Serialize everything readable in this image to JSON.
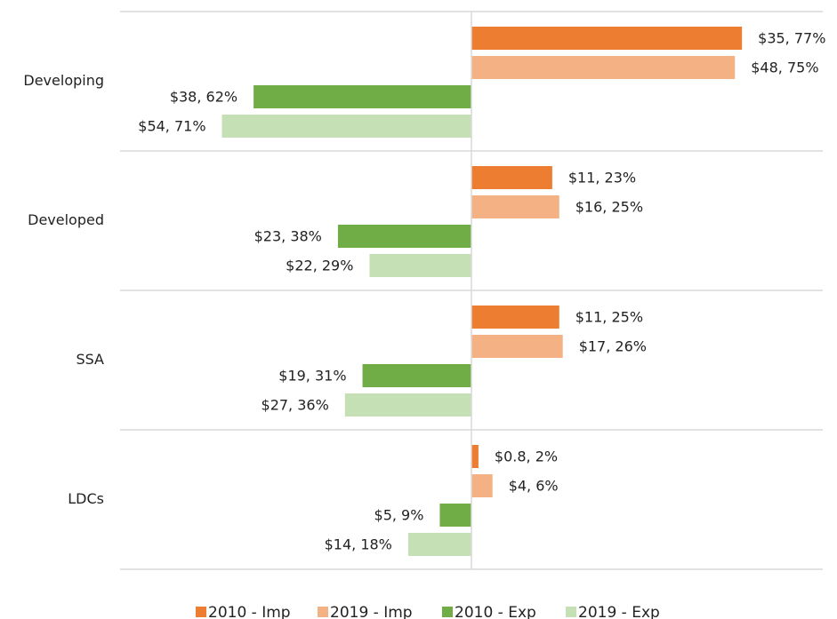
{
  "chart_data": {
    "type": "diverging-bar",
    "categories": [
      "Developing",
      "Developed",
      "SSA",
      "LDCs"
    ],
    "series": [
      {
        "name": "2010 - Imp",
        "color": "#ed7d31",
        "direction": "right",
        "values": [
          77,
          23,
          25,
          2
        ],
        "value_labels": [
          "$35, 77%",
          "$11, 23%",
          "$11, 25%",
          "$0.8, 2%"
        ]
      },
      {
        "name": "2019 - Imp",
        "color": "#f4b183",
        "direction": "right",
        "values": [
          75,
          25,
          26,
          6
        ],
        "value_labels": [
          "$48, 75%",
          "$16, 25%",
          "$17, 26%",
          "$4, 6%"
        ]
      },
      {
        "name": "2010 - Exp",
        "color": "#70ad47",
        "direction": "left",
        "values": [
          62,
          38,
          31,
          9
        ],
        "value_labels": [
          "$38, 62%",
          "$23, 38%",
          "$19, 31%",
          "$5, 9%"
        ]
      },
      {
        "name": "2019 - Exp",
        "color": "#c5e0b4",
        "direction": "left",
        "values": [
          71,
          29,
          36,
          18
        ],
        "value_labels": [
          "$54, 71%",
          "$22, 29%",
          "$27, 36%",
          "$14, 18%"
        ]
      }
    ]
  }
}
